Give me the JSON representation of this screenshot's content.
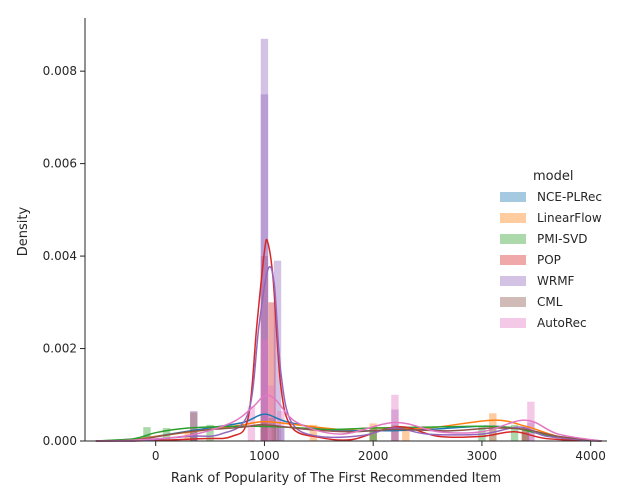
{
  "chart_data": {
    "type": "histogram-kde",
    "xlabel": "Rank of Popularity of The First Recommended Item",
    "ylabel": "Density",
    "xlim": [
      -650,
      4150
    ],
    "ylim": [
      0,
      0.00915
    ],
    "xticks": [
      0,
      1000,
      2000,
      3000,
      4000
    ],
    "xtick_labels": [
      "0",
      "1000",
      "2000",
      "3000",
      "4000"
    ],
    "yticks": [
      0,
      0.002,
      0.004,
      0.006,
      0.008
    ],
    "ytick_labels": [
      "0.000",
      "0.002",
      "0.004",
      "0.006",
      "0.008"
    ],
    "legend": {
      "title": "model",
      "placement": "right"
    },
    "bin_width": 68,
    "series": [
      {
        "name": "NCE-PLRec",
        "color": "#1f77b4",
        "hist": [
          [
            -80,
            0.00012
          ],
          [
            350,
            0.00025
          ],
          [
            1000,
            0.00055
          ],
          [
            1070,
            0.0005
          ],
          [
            1150,
            0.0003
          ],
          [
            2000,
            0.00025
          ],
          [
            3100,
            0.0003
          ],
          [
            3400,
            0.0002
          ]
        ],
        "kde": [
          [
            -550,
            0
          ],
          [
            -200,
            3e-05
          ],
          [
            0,
            0.0001
          ],
          [
            400,
            0.00025
          ],
          [
            800,
            0.0004
          ],
          [
            1000,
            0.00058
          ],
          [
            1200,
            0.00042
          ],
          [
            1600,
            0.00025
          ],
          [
            2000,
            0.00022
          ],
          [
            2500,
            0.00025
          ],
          [
            3000,
            0.00032
          ],
          [
            3300,
            0.00028
          ],
          [
            3600,
            0.00012
          ],
          [
            3900,
            2e-05
          ],
          [
            4100,
            0
          ]
        ]
      },
      {
        "name": "LinearFlow",
        "color": "#ff7f0e",
        "hist": [
          [
            300,
            0.00022
          ],
          [
            1000,
            0.00045
          ],
          [
            1450,
            0.00035
          ],
          [
            2000,
            0.00038
          ],
          [
            2300,
            0.00028
          ],
          [
            3100,
            0.0006
          ],
          [
            3400,
            0.0003
          ]
        ],
        "kde": [
          [
            -550,
            0
          ],
          [
            -200,
            3e-05
          ],
          [
            0,
            0.0001
          ],
          [
            400,
            0.00022
          ],
          [
            800,
            0.00035
          ],
          [
            1000,
            0.00042
          ],
          [
            1300,
            0.00035
          ],
          [
            1700,
            0.00025
          ],
          [
            2000,
            0.00028
          ],
          [
            2500,
            0.00028
          ],
          [
            3100,
            0.00045
          ],
          [
            3400,
            0.00032
          ],
          [
            3700,
            0.0001
          ],
          [
            4000,
            1e-05
          ],
          [
            4100,
            0
          ]
        ]
      },
      {
        "name": "PMI-SVD",
        "color": "#2ca02c",
        "hist": [
          [
            -80,
            0.0003
          ],
          [
            100,
            0.00028
          ],
          [
            500,
            0.00035
          ],
          [
            1000,
            0.0003
          ],
          [
            2000,
            0.00028
          ],
          [
            3000,
            0.00032
          ],
          [
            3300,
            0.00035
          ]
        ],
        "kde": [
          [
            -550,
            0
          ],
          [
            -200,
            5e-05
          ],
          [
            0,
            0.00018
          ],
          [
            300,
            0.00028
          ],
          [
            800,
            0.00032
          ],
          [
            1200,
            0.0003
          ],
          [
            1600,
            0.00025
          ],
          [
            2000,
            0.00028
          ],
          [
            2500,
            0.0003
          ],
          [
            3000,
            0.00032
          ],
          [
            3300,
            0.00028
          ],
          [
            3600,
            0.00012
          ],
          [
            3900,
            2e-05
          ],
          [
            4100,
            0
          ]
        ]
      },
      {
        "name": "POP",
        "color": "#d62728",
        "hist": [
          [
            1000,
            0.004
          ],
          [
            1070,
            0.003
          ]
        ],
        "kde": [
          [
            -550,
            0
          ],
          [
            -200,
            0
          ],
          [
            400,
            5e-05
          ],
          [
            700,
            0.0001
          ],
          [
            850,
            0.0005
          ],
          [
            930,
            0.0025
          ],
          [
            1000,
            0.0041
          ],
          [
            1030,
            0.0043
          ],
          [
            1080,
            0.0035
          ],
          [
            1150,
            0.0012
          ],
          [
            1250,
            0.0003
          ],
          [
            1500,
            8e-05
          ],
          [
            1800,
            3e-05
          ],
          [
            2100,
            0.00025
          ],
          [
            2300,
            0.0003
          ],
          [
            2600,
            0.0001
          ],
          [
            3000,
            0.0001
          ],
          [
            3300,
            0.0002
          ],
          [
            3600,
            5e-05
          ],
          [
            4100,
            0
          ]
        ]
      },
      {
        "name": "WRMF",
        "color": "#9467bd",
        "hist": [
          [
            1000,
            0.0075
          ],
          [
            1000,
            0.0087
          ],
          [
            1120,
            0.0039
          ],
          [
            350,
            0.00065
          ],
          [
            2200,
            0.00068
          ],
          [
            3450,
            0.0004
          ]
        ],
        "kde": [
          [
            -550,
            0
          ],
          [
            -200,
            0
          ],
          [
            300,
            0.0001
          ],
          [
            600,
            0.00015
          ],
          [
            850,
            0.0006
          ],
          [
            950,
            0.0025
          ],
          [
            1030,
            0.0037
          ],
          [
            1090,
            0.0034
          ],
          [
            1150,
            0.0015
          ],
          [
            1250,
            0.0004
          ],
          [
            1500,
            0.0001
          ],
          [
            1900,
            0.00012
          ],
          [
            2200,
            0.00028
          ],
          [
            2500,
            0.00015
          ],
          [
            3000,
            0.00015
          ],
          [
            3350,
            0.0003
          ],
          [
            3600,
            0.0001
          ],
          [
            4100,
            0
          ]
        ]
      },
      {
        "name": "CML",
        "color": "#8c564b",
        "hist": [
          [
            350,
            0.00062
          ],
          [
            1000,
            0.0004
          ],
          [
            1100,
            0.00035
          ],
          [
            2200,
            0.00035
          ],
          [
            3400,
            0.00028
          ]
        ],
        "kde": [
          [
            -550,
            0
          ],
          [
            -200,
            2e-05
          ],
          [
            300,
            0.0002
          ],
          [
            800,
            0.0003
          ],
          [
            1000,
            0.00035
          ],
          [
            1400,
            0.00025
          ],
          [
            1800,
            0.0002
          ],
          [
            2200,
            0.00025
          ],
          [
            2700,
            0.00022
          ],
          [
            3100,
            0.00028
          ],
          [
            3400,
            0.00025
          ],
          [
            3700,
            0.0001
          ],
          [
            4100,
            0
          ]
        ]
      },
      {
        "name": "AutoRec",
        "color": "#e377c2",
        "hist": [
          [
            880,
            0.00075
          ],
          [
            1000,
            0.0022
          ],
          [
            1060,
            0.0012
          ],
          [
            1150,
            0.00065
          ],
          [
            2200,
            0.001
          ],
          [
            3450,
            0.00085
          ]
        ],
        "kde": [
          [
            -550,
            0
          ],
          [
            -200,
            2e-05
          ],
          [
            300,
            0.00012
          ],
          [
            700,
            0.0004
          ],
          [
            900,
            0.00075
          ],
          [
            1000,
            0.00098
          ],
          [
            1100,
            0.0009
          ],
          [
            1300,
            0.0004
          ],
          [
            1700,
            0.00015
          ],
          [
            2200,
            0.0004
          ],
          [
            2600,
            0.0002
          ],
          [
            3000,
            0.0002
          ],
          [
            3400,
            0.00045
          ],
          [
            3700,
            0.00015
          ],
          [
            4100,
            0
          ]
        ]
      }
    ]
  }
}
